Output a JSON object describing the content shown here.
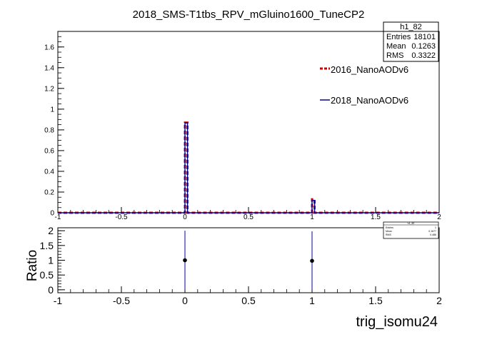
{
  "title": "2018_SMS-T1tbs_RPV_mGluino1600_TuneCP2",
  "stats_box": {
    "name": "h1_82",
    "rows": [
      {
        "label": "Entries",
        "value": "18101"
      },
      {
        "label": "Mean",
        "value": "0.1263"
      },
      {
        "label": "RMS",
        "value": "0.3322"
      }
    ]
  },
  "stats_box_small": {
    "name": "h1_82",
    "rows": [
      {
        "label": "Entries",
        "value": "1"
      },
      {
        "label": "Mean",
        "value": "0.1677"
      },
      {
        "label": "RMS",
        "value": "0.486"
      }
    ]
  },
  "legend": [
    {
      "label": "2016_NanoAODv6",
      "color": "#cc0000",
      "style": "dashed"
    },
    {
      "label": "2018_NanoAODv6",
      "color": "#000099",
      "style": "solid"
    }
  ],
  "chart_data": [
    {
      "type": "bar",
      "title": "2018_SMS-T1tbs_RPV_mGluino1600_TuneCP2",
      "xlabel": "",
      "ylabel": "",
      "xlim": [
        -1,
        2
      ],
      "ylim": [
        0,
        1.75
      ],
      "yticks": [
        0,
        0.2,
        0.4,
        0.6,
        0.8,
        1,
        1.2,
        1.4,
        1.6
      ],
      "xticks": [
        -1,
        -0.5,
        0,
        0.5,
        1,
        1.5,
        2
      ],
      "bins": {
        "start": -1,
        "end": 2,
        "width": 0.02
      },
      "series": [
        {
          "name": "2016_NanoAODv6",
          "color": "#cc0000",
          "style": "dashed",
          "points": [
            {
              "x": 0.0,
              "y": 0.87
            },
            {
              "x": 1.0,
              "y": 0.13
            }
          ]
        },
        {
          "name": "2018_NanoAODv6",
          "color": "#000099",
          "style": "solid",
          "points": [
            {
              "x": 0.0,
              "y": 0.87
            },
            {
              "x": 1.0,
              "y": 0.12
            }
          ]
        }
      ],
      "grid": false,
      "legend_position": "right"
    },
    {
      "type": "scatter",
      "xlabel": "trig_isomu24",
      "ylabel": "Ratio",
      "xlim": [
        -1,
        2
      ],
      "ylim": [
        -0.1,
        2.1
      ],
      "yticks": [
        0,
        0.5,
        1,
        1.5,
        2
      ],
      "xticks": [
        -1,
        -0.5,
        0,
        0.5,
        1,
        1.5,
        2
      ],
      "points": [
        {
          "x": 0.0,
          "y": 1.0,
          "err_low": 1.0,
          "err_high": 1.0
        },
        {
          "x": 1.0,
          "y": 0.98,
          "err_low": 0.98,
          "err_high": 1.0
        }
      ],
      "grid": false
    }
  ]
}
